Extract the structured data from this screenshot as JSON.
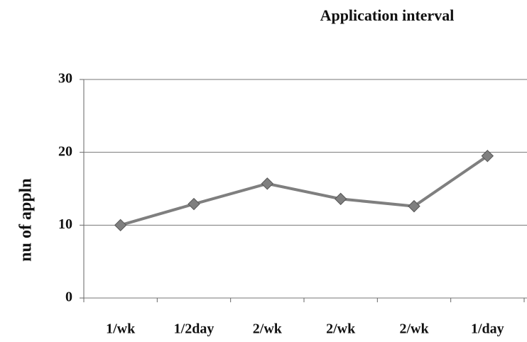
{
  "chart_data": {
    "type": "line",
    "title": "Application interval",
    "ylabel": "nu of appln",
    "categories": [
      "1/wk",
      "1/2day",
      "2/wk",
      "2/wk",
      "2/wk",
      "1/day"
    ],
    "series": [
      {
        "name": "nu of appln",
        "color": "#7f7f7f",
        "values": [
          10,
          12.9,
          15.7,
          13.6,
          12.6,
          19.5
        ]
      }
    ],
    "ylim": [
      0,
      30
    ],
    "yticks": [
      0,
      10,
      20,
      30
    ],
    "grid": true
  }
}
